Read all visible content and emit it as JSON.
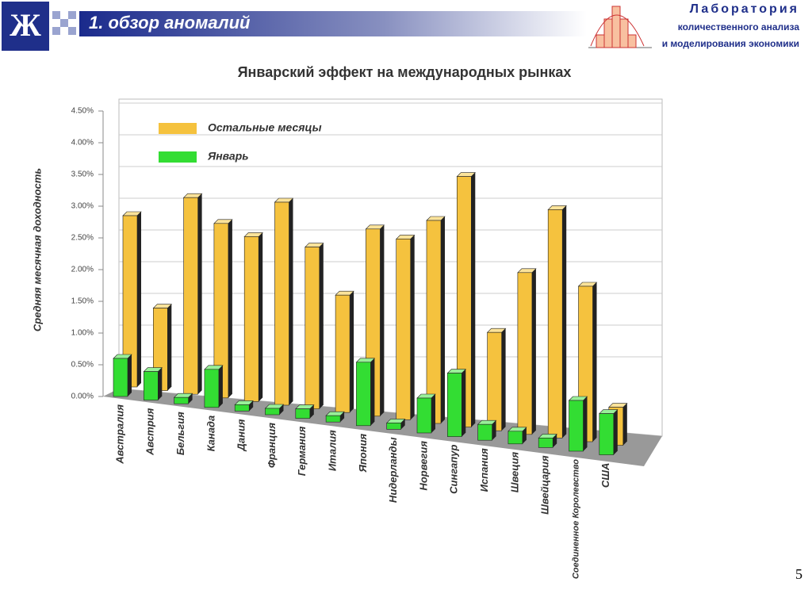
{
  "header": {
    "title": "1. обзор аномалий",
    "lab_line1": "Лаборатория",
    "lab_line2": "количественного анализа",
    "lab_line3": "и моделирования экономики"
  },
  "page_number": "5",
  "chart_data": {
    "type": "bar3d",
    "title": "Январский эффект на международных рынках",
    "y_label": "Средняя месячная доходность",
    "categories": [
      "Австралия",
      "Австрия",
      "Бельгия",
      "Канада",
      "Дания",
      "Франция",
      "Германия",
      "Италия",
      "Япония",
      "Нидерланды",
      "Норвегия",
      "Сингапур",
      "Испания",
      "Швеция",
      "Швейцария",
      "Соединенное Королевство",
      "США"
    ],
    "series": [
      {
        "name": "Остальные месяцы",
        "color": "#f5c23e",
        "values": [
          2.7,
          1.3,
          3.1,
          2.75,
          2.6,
          3.2,
          2.55,
          1.85,
          2.95,
          2.85,
          3.2,
          3.95,
          1.55,
          2.55,
          3.6,
          2.45,
          0.6
        ]
      },
      {
        "name": "Январь",
        "color": "#33dd33",
        "values": [
          0.6,
          0.45,
          0.1,
          0.6,
          0.1,
          0.1,
          0.15,
          0.1,
          1.0,
          0.1,
          0.55,
          1.0,
          0.25,
          0.2,
          0.15,
          0.8,
          0.65
        ]
      }
    ],
    "ylim": [
      0,
      4.5
    ],
    "yticks": [
      {
        "value": 0,
        "label": "0.00%"
      },
      {
        "value": 0.5,
        "label": "0.50%"
      },
      {
        "value": 1,
        "label": "1.00%"
      },
      {
        "value": 1.5,
        "label": "1.50%"
      },
      {
        "value": 2,
        "label": "2.00%"
      },
      {
        "value": 2.5,
        "label": "2.50%"
      },
      {
        "value": 3,
        "label": "3.00%"
      },
      {
        "value": 3.5,
        "label": "3.50%"
      },
      {
        "value": 4,
        "label": "4.00%"
      },
      {
        "value": 4.5,
        "label": "4.50%"
      }
    ],
    "grid": true
  }
}
